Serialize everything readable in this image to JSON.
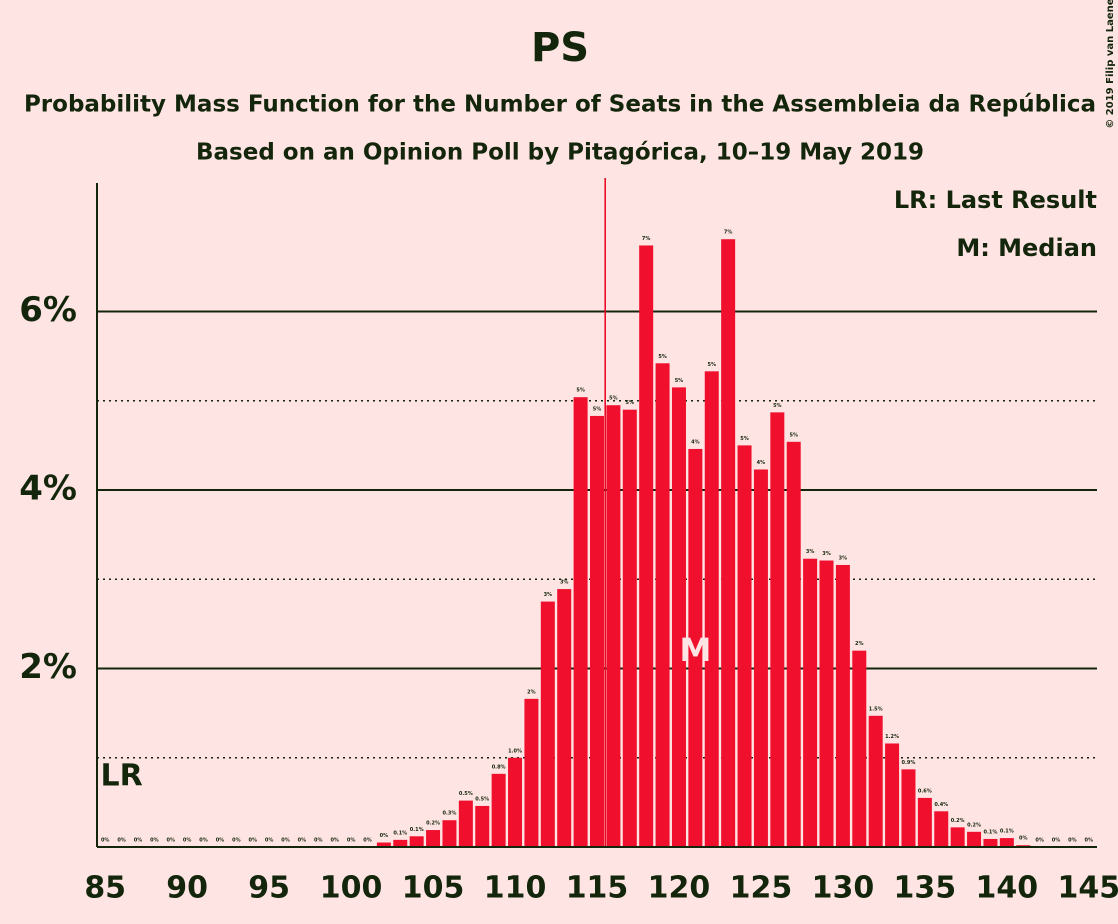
{
  "chart_data": {
    "type": "bar",
    "title": "PS",
    "subtitle": "Probability Mass Function for the Number of Seats in the Assembleia da República",
    "subtitle2": "Based on an Opinion Poll by Pitagórica, 10–19 May 2019",
    "copyright": "© 2019 Filip van Laenen",
    "legend": [
      "LR: Last Result",
      "M: Median"
    ],
    "color": "#f0102e",
    "x": [
      85,
      86,
      87,
      88,
      89,
      90,
      91,
      92,
      93,
      94,
      95,
      96,
      97,
      98,
      99,
      100,
      101,
      102,
      103,
      104,
      105,
      106,
      107,
      108,
      109,
      110,
      111,
      112,
      113,
      114,
      115,
      116,
      117,
      118,
      119,
      120,
      121,
      122,
      123,
      124,
      125,
      126,
      127,
      128,
      129,
      130,
      131,
      132,
      133,
      134,
      135,
      136,
      137,
      138,
      139,
      140,
      141,
      142,
      143,
      144,
      145
    ],
    "values": [
      0,
      0,
      0,
      0,
      0,
      0,
      0,
      0,
      0,
      0,
      0,
      0,
      0,
      0,
      0,
      0,
      0,
      0.05,
      0.08,
      0.12,
      0.19,
      0.3,
      0.52,
      0.46,
      0.82,
      1.0,
      1.66,
      2.75,
      2.89,
      5.04,
      4.83,
      4.95,
      4.9,
      6.74,
      5.42,
      5.15,
      4.46,
      5.33,
      6.81,
      4.5,
      4.23,
      4.87,
      4.54,
      3.23,
      3.21,
      3.16,
      2.2,
      1.47,
      1.16,
      0.87,
      0.55,
      0.4,
      0.22,
      0.17,
      0.09,
      0.1,
      0.02,
      0,
      0,
      0,
      0
    ],
    "value_labels": [
      "0%",
      "0%",
      "0%",
      "0%",
      "0%",
      "0%",
      "0%",
      "0%",
      "0%",
      "0%",
      "0%",
      "0%",
      "0%",
      "0%",
      "0%",
      "0%",
      "0%",
      "0%",
      "0.1%",
      "0.1%",
      "0.2%",
      "0.3%",
      "0.5%",
      "0.5%",
      "0.8%",
      "1.0%",
      "2%",
      "3%",
      "3%",
      "5%",
      "5%",
      "5%",
      "5%",
      "7%",
      "5%",
      "5%",
      "4%",
      "5%",
      "7%",
      "5%",
      "4%",
      "5%",
      "5%",
      "3%",
      "3%",
      "3%",
      "2%",
      "1.5%",
      "1.2%",
      "0.9%",
      "0.6%",
      "0.4%",
      "0.2%",
      "0.2%",
      "0.1%",
      "0.1%",
      "0%",
      "0%",
      "0%",
      "0%",
      "0%"
    ],
    "xlim": [
      84.5,
      145.5
    ],
    "xticks": [
      85,
      90,
      95,
      100,
      105,
      110,
      115,
      120,
      125,
      130,
      135,
      140,
      145
    ],
    "ylim": [
      0,
      7.44
    ],
    "yticks": [
      {
        "value": 2,
        "label": "2%"
      },
      {
        "value": 4,
        "label": "4%"
      },
      {
        "value": 6,
        "label": "6%"
      }
    ],
    "dotted_gridlines": [
      1,
      3,
      5
    ],
    "majority": 116,
    "last_result": 86,
    "last_result_label": "LR",
    "median": 121,
    "median_label": "M"
  }
}
